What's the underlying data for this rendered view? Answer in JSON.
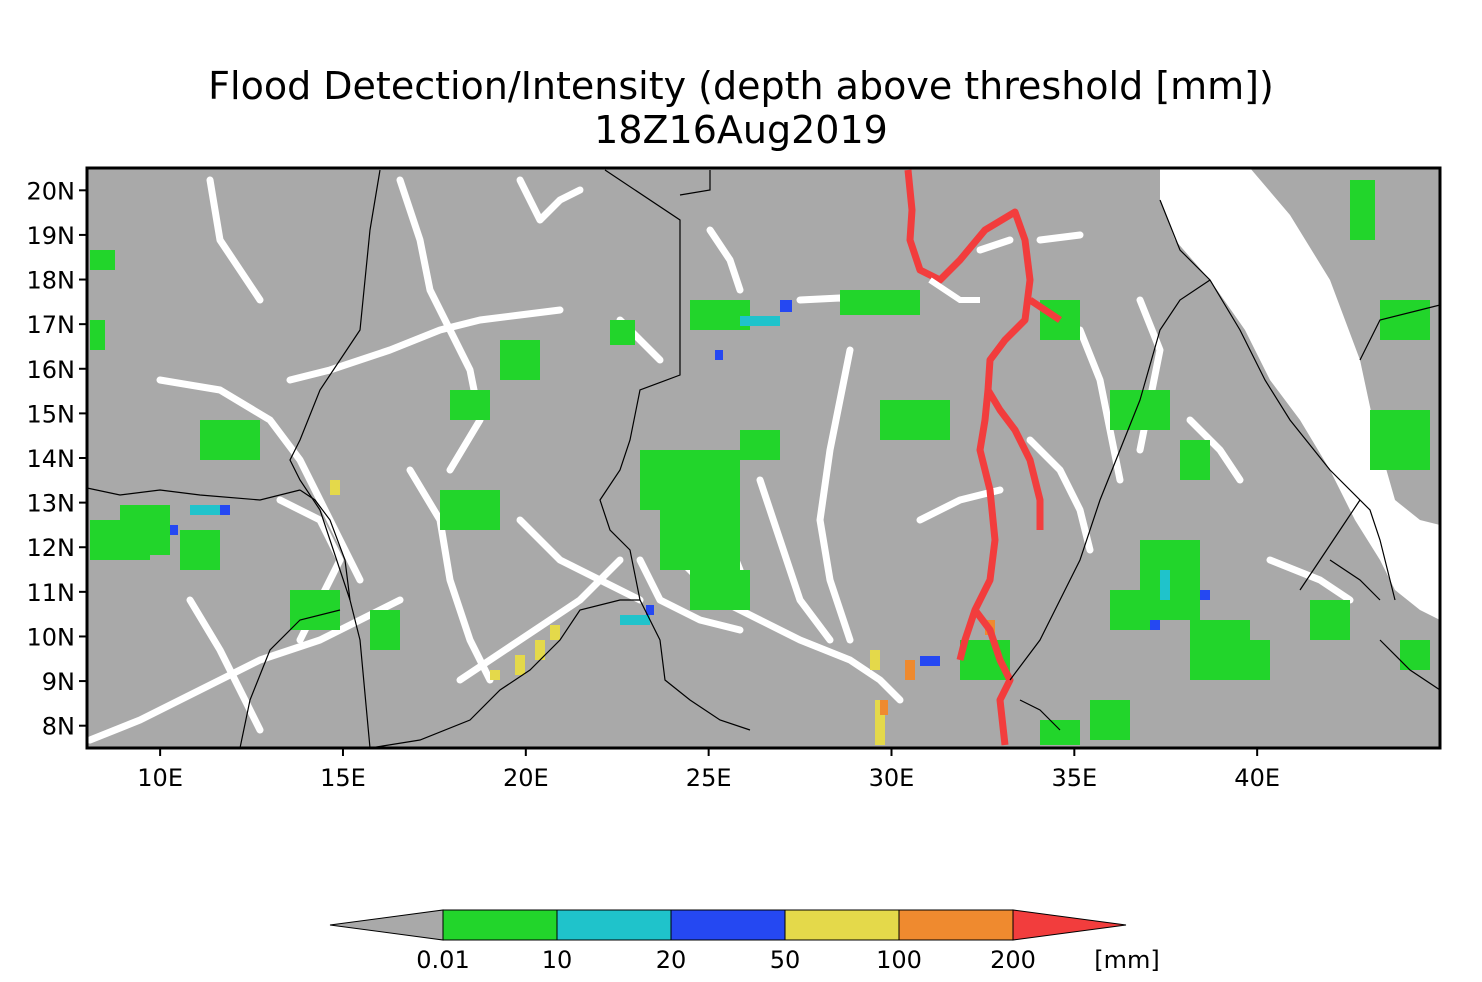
{
  "title": "Flood Detection/Intensity (depth above threshold [mm])",
  "subtitle": "18Z16Aug2019",
  "map": {
    "lon_range": [
      8,
      45
    ],
    "lat_range": [
      7.5,
      20.5
    ],
    "lat_labels": [
      "20N",
      "19N",
      "18N",
      "17N",
      "16N",
      "15N",
      "14N",
      "13N",
      "12N",
      "11N",
      "10N",
      "9N",
      "8N"
    ],
    "lat_values": [
      20,
      19,
      18,
      17,
      16,
      15,
      14,
      13,
      12,
      11,
      10,
      9,
      8
    ],
    "lon_labels": [
      "10E",
      "15E",
      "20E",
      "25E",
      "30E",
      "35E",
      "40E"
    ],
    "lon_values": [
      10,
      15,
      20,
      25,
      30,
      35,
      40
    ],
    "background_color": "#a9a9a9",
    "sea_color": "#ffffff"
  },
  "colorbar": {
    "unit": "[mm]",
    "tick_labels": [
      "0.01",
      "10",
      "20",
      "50",
      "100",
      "200"
    ],
    "colors": [
      "#a9a9a9",
      "#22d52b",
      "#1fc3cb",
      "#2548f2",
      "#e4d94a",
      "#ef8a2f",
      "#f23d3d"
    ]
  }
}
